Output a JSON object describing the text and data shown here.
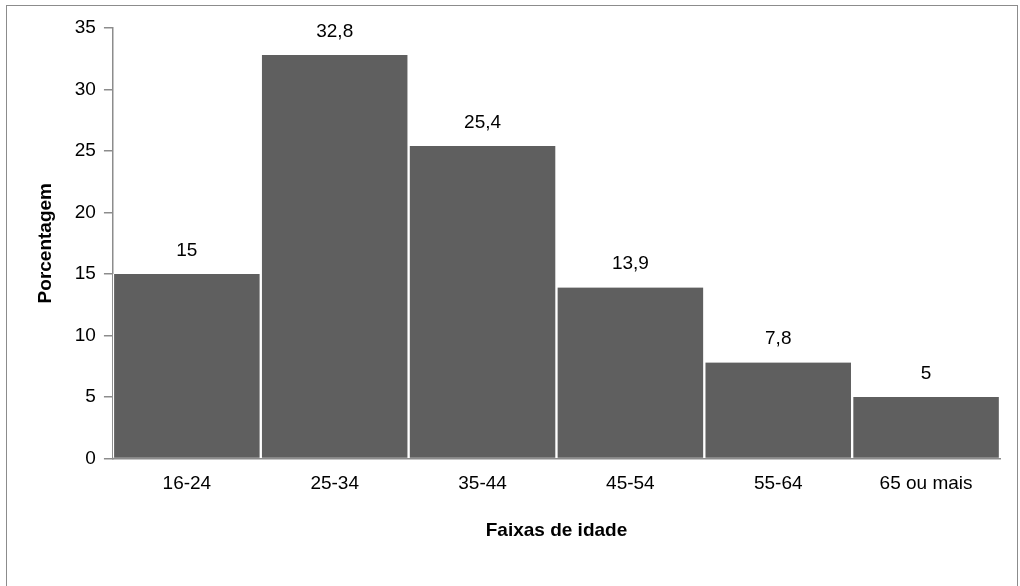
{
  "chart_data": {
    "type": "bar",
    "xlabel": "Faixas de idade",
    "ylabel": "Porcentagem",
    "categories": [
      "16-24",
      "25-34",
      "35-44",
      "45-54",
      "55-64",
      "65 ou mais"
    ],
    "values": [
      15,
      32.8,
      25.4,
      13.9,
      7.8,
      5
    ],
    "value_labels": [
      "15",
      "32,8",
      "25,4",
      "13,9",
      "7,8",
      "5"
    ],
    "color": "#5f5f5f",
    "ylim": [
      0,
      35
    ],
    "yticks": [
      0,
      5,
      10,
      15,
      20,
      25,
      30,
      35
    ],
    "grid": false,
    "legend": false
  }
}
